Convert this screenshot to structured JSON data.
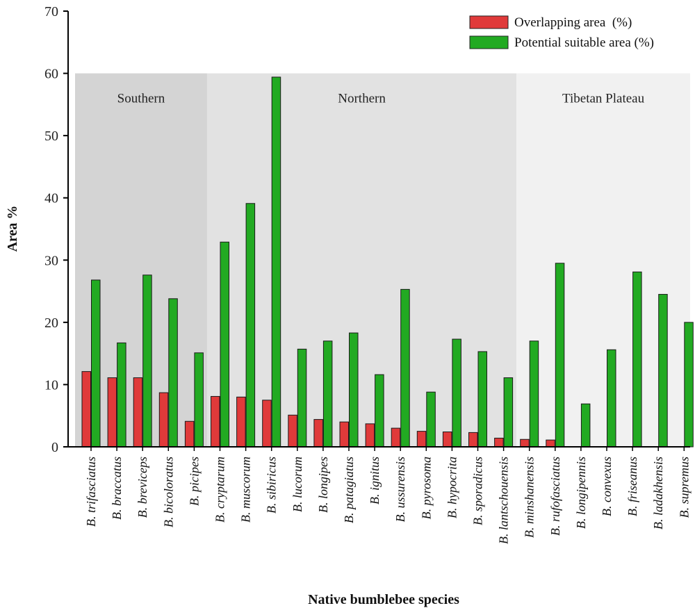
{
  "chart_data": {
    "type": "bar",
    "title": "",
    "xlabel": "Native bumblebee species",
    "ylabel": "Area %",
    "ylim": [
      0,
      70
    ],
    "yticks": [
      0,
      10,
      20,
      30,
      40,
      50,
      60,
      70
    ],
    "grid": false,
    "legend_position": "top-right",
    "categories": [
      "B. trifasciatus",
      "B. braccatus",
      "B. breviceps",
      "B. bicoloratus",
      "B. picipes",
      "B. cryptarum",
      "B. muscorum",
      "B. sibiricus",
      "B. lucorum",
      "B. longipes",
      "B. patagiatus",
      "B. ignitus",
      "B. ussurensis",
      "B. pyrosoma",
      "B. hypocrita",
      "B. sporadicus",
      "B. lantschouensis",
      "B. minshanensis",
      "B. rufofasciatus",
      "B. longipennis",
      "B. convexus",
      "B. friseanus",
      "B. ladakhensis",
      "B. supremus"
    ],
    "series": [
      {
        "name": "Overlapping area  (%)",
        "color": "#e03a3a",
        "values": [
          12.1,
          11.1,
          11.1,
          8.7,
          4.1,
          8.1,
          8.0,
          7.5,
          5.1,
          4.4,
          4.0,
          3.7,
          3.0,
          2.5,
          2.4,
          2.3,
          1.4,
          1.2,
          1.1,
          0,
          0,
          0,
          0,
          0
        ]
      },
      {
        "name": "Potential suitable area (%)",
        "color": "#22aa22",
        "values": [
          26.8,
          16.7,
          27.6,
          23.8,
          15.1,
          32.9,
          39.1,
          59.4,
          15.7,
          17.0,
          18.3,
          11.6,
          25.3,
          8.8,
          17.3,
          15.3,
          11.1,
          17.0,
          29.5,
          6.9,
          15.6,
          28.1,
          24.5,
          20.0
        ]
      }
    ],
    "regions": [
      {
        "label": "Southern",
        "start": 0,
        "end": 4,
        "color": "#d4d4d4"
      },
      {
        "label": "Northern",
        "start": 5,
        "end": 16,
        "color": "#e2e2e2"
      },
      {
        "label": "Tibetan Plateau",
        "start": 17,
        "end": 23,
        "color": "#f1f1f1"
      }
    ]
  }
}
